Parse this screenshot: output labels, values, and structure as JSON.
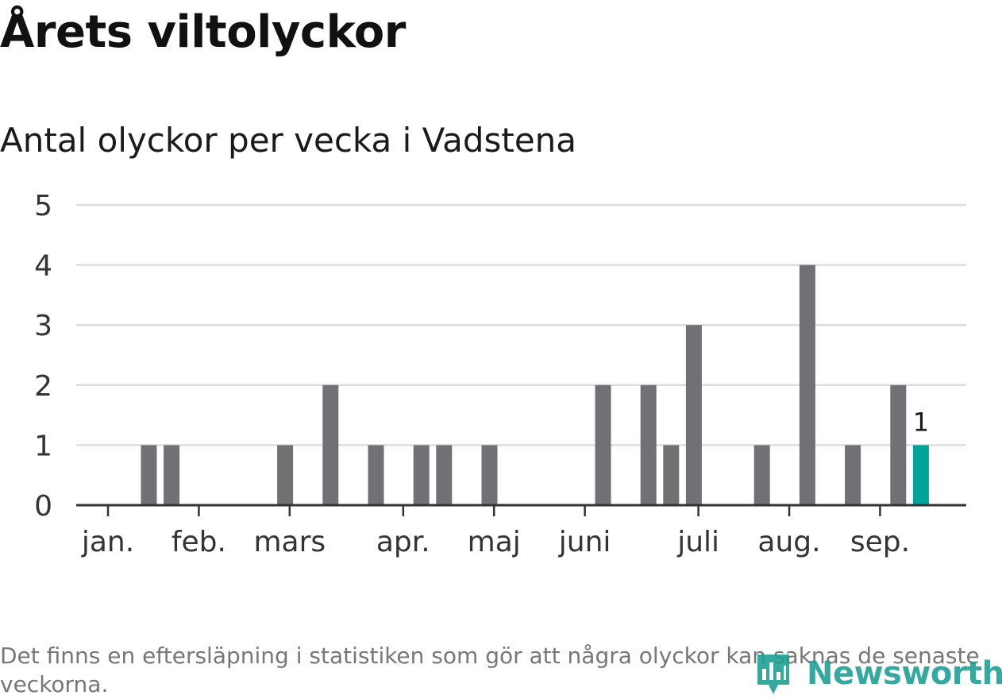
{
  "title": "Årets viltolyckor",
  "subtitle": "Antal olyckor per vecka i Vadstena",
  "footnote": "Det finns en eftersläpning i statistiken som gör att några olyckor kan saknas de senaste veckorna.",
  "logo": {
    "text": "Newsworthy",
    "icon": "newsworthy-bars-icon",
    "color": "#1a9e92"
  },
  "colors": {
    "bar": "#707075",
    "highlight": "#00a49a",
    "grid": "#dddddd",
    "axis": "#333333"
  },
  "chart_data": {
    "type": "bar",
    "xlabel": "",
    "ylabel": "",
    "ylim": [
      0,
      5
    ],
    "yticks": [
      0,
      1,
      2,
      3,
      4,
      5
    ],
    "grid": true,
    "weeks": [
      1,
      2,
      3,
      4,
      5,
      6,
      7,
      8,
      9,
      10,
      11,
      12,
      13,
      14,
      15,
      16,
      17,
      18,
      19,
      20,
      21,
      22,
      23,
      24,
      25,
      26,
      27,
      28,
      29,
      30,
      31,
      32,
      33,
      34,
      35,
      36,
      37,
      38
    ],
    "values": [
      0,
      0,
      1,
      1,
      0,
      0,
      0,
      0,
      1,
      0,
      2,
      0,
      1,
      0,
      1,
      1,
      0,
      1,
      0,
      0,
      0,
      0,
      2,
      0,
      2,
      1,
      3,
      0,
      0,
      1,
      0,
      4,
      0,
      1,
      0,
      2,
      1,
      0
    ],
    "highlight_index": 36,
    "highlight_label": "1",
    "month_labels": [
      {
        "label": "jan.",
        "week": 1.2
      },
      {
        "label": "feb.",
        "week": 5.2
      },
      {
        "label": "mars",
        "week": 9.2
      },
      {
        "label": "apr.",
        "week": 14.2
      },
      {
        "label": "maj",
        "week": 18.2
      },
      {
        "label": "juni",
        "week": 22.2
      },
      {
        "label": "juli",
        "week": 27.2
      },
      {
        "label": "aug.",
        "week": 31.2
      },
      {
        "label": "sep.",
        "week": 35.2
      }
    ]
  }
}
